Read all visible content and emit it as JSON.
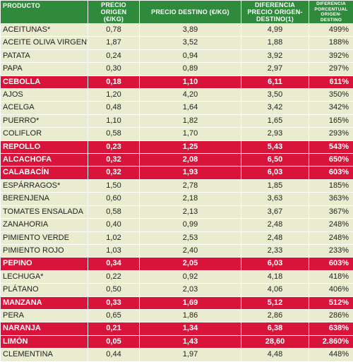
{
  "colors": {
    "header_green": "#2f8a3c",
    "row_normal": "#e9ecce",
    "row_highlight": "#d9143a"
  },
  "headers": {
    "product": "PRODUCTO",
    "origin_price": "PRECIO ORIGEN (€/kg)",
    "destination_price": "PRECIO DESTINO (€/kg)",
    "difference": "DIFERENCIA PRECIO ORIGEN-DESTINO(1)",
    "percent_difference": "DIFERENCIA PORCENTUAL ORIGEN-DESTINO"
  },
  "rows": [
    {
      "product": "ACEITUNAS*",
      "origin": "0,78",
      "destination": "3,89",
      "difference": "4,99",
      "percent": "499%",
      "highlight": false
    },
    {
      "product": "ACEITE OLIVA VIRGEN*",
      "origin": "1,87",
      "destination": "3,52",
      "difference": "1,88",
      "percent": "188%",
      "highlight": false
    },
    {
      "product": "PATATA",
      "origin": "0,24",
      "destination": "0,94",
      "difference": "3,92",
      "percent": "392%",
      "highlight": false
    },
    {
      "product": "PAPA",
      "origin": "0,30",
      "destination": "0,89",
      "difference": "2,97",
      "percent": "297%",
      "highlight": false
    },
    {
      "product": "CEBOLLA",
      "origin": "0,18",
      "destination": "1,10",
      "difference": "6,11",
      "percent": "611%",
      "highlight": true
    },
    {
      "product": "AJOS",
      "origin": "1,20",
      "destination": "4,20",
      "difference": "3,50",
      "percent": "350%",
      "highlight": false
    },
    {
      "product": "ACELGA",
      "origin": "0,48",
      "destination": "1,64",
      "difference": "3,42",
      "percent": "342%",
      "highlight": false
    },
    {
      "product": "PUERRO*",
      "origin": "1,10",
      "destination": "1,82",
      "difference": "1,65",
      "percent": "165%",
      "highlight": false
    },
    {
      "product": "COLIFLOR",
      "origin": "0,58",
      "destination": "1,70",
      "difference": "2,93",
      "percent": "293%",
      "highlight": false
    },
    {
      "product": "REPOLLO",
      "origin": "0,23",
      "destination": "1,25",
      "difference": "5,43",
      "percent": "543%",
      "highlight": true
    },
    {
      "product": "ALCACHOFA",
      "origin": "0,32",
      "destination": "2,08",
      "difference": "6,50",
      "percent": "650%",
      "highlight": true
    },
    {
      "product": "CALABACÍN",
      "origin": "0,32",
      "destination": "1,93",
      "difference": "6,03",
      "percent": "603%",
      "highlight": true
    },
    {
      "product": "ESPÁRRAGOS*",
      "origin": "1,50",
      "destination": "2,78",
      "difference": "1,85",
      "percent": "185%",
      "highlight": false
    },
    {
      "product": "BERENJENA",
      "origin": "0,60",
      "destination": "2,18",
      "difference": "3,63",
      "percent": "363%",
      "highlight": false
    },
    {
      "product": "TOMATES ENSALADA",
      "origin": "0,58",
      "destination": "2,13",
      "difference": "3,67",
      "percent": "367%",
      "highlight": false
    },
    {
      "product": "ZANAHORIA",
      "origin": "0,40",
      "destination": "0,99",
      "difference": "2,48",
      "percent": "248%",
      "highlight": false
    },
    {
      "product": "PIMIENTO VERDE",
      "origin": "1,02",
      "destination": "2,53",
      "difference": "2,48",
      "percent": "248%",
      "highlight": false
    },
    {
      "product": "PIMIENTO ROJO",
      "origin": "1,03",
      "destination": "2,40",
      "difference": "2,33",
      "percent": "233%",
      "highlight": false
    },
    {
      "product": "PEPINO",
      "origin": "0,34",
      "destination": "2,05",
      "difference": "6,03",
      "percent": "603%",
      "highlight": true
    },
    {
      "product": "LECHUGA*",
      "origin": "0,22",
      "destination": "0,92",
      "difference": "4,18",
      "percent": "418%",
      "highlight": false
    },
    {
      "product": "PLÁTANO",
      "origin": "0,50",
      "destination": "2,03",
      "difference": "4,06",
      "percent": "406%",
      "highlight": false
    },
    {
      "product": "MANZANA",
      "origin": "0,33",
      "destination": "1,69",
      "difference": "5,12",
      "percent": "512%",
      "highlight": true
    },
    {
      "product": "PERA",
      "origin": "0,65",
      "destination": "1,86",
      "difference": "2,86",
      "percent": "286%",
      "highlight": false
    },
    {
      "product": "NARANJA",
      "origin": "0,21",
      "destination": "1,34",
      "difference": "6,38",
      "percent": "638%",
      "highlight": true
    },
    {
      "product": "LIMÓN",
      "origin": "0,05",
      "destination": "1,43",
      "difference": "28,60",
      "percent": "2.860%",
      "highlight": true
    },
    {
      "product": "CLEMENTINA",
      "origin": "0,44",
      "destination": "1,97",
      "difference": "4,48",
      "percent": "448%",
      "highlight": false
    }
  ]
}
